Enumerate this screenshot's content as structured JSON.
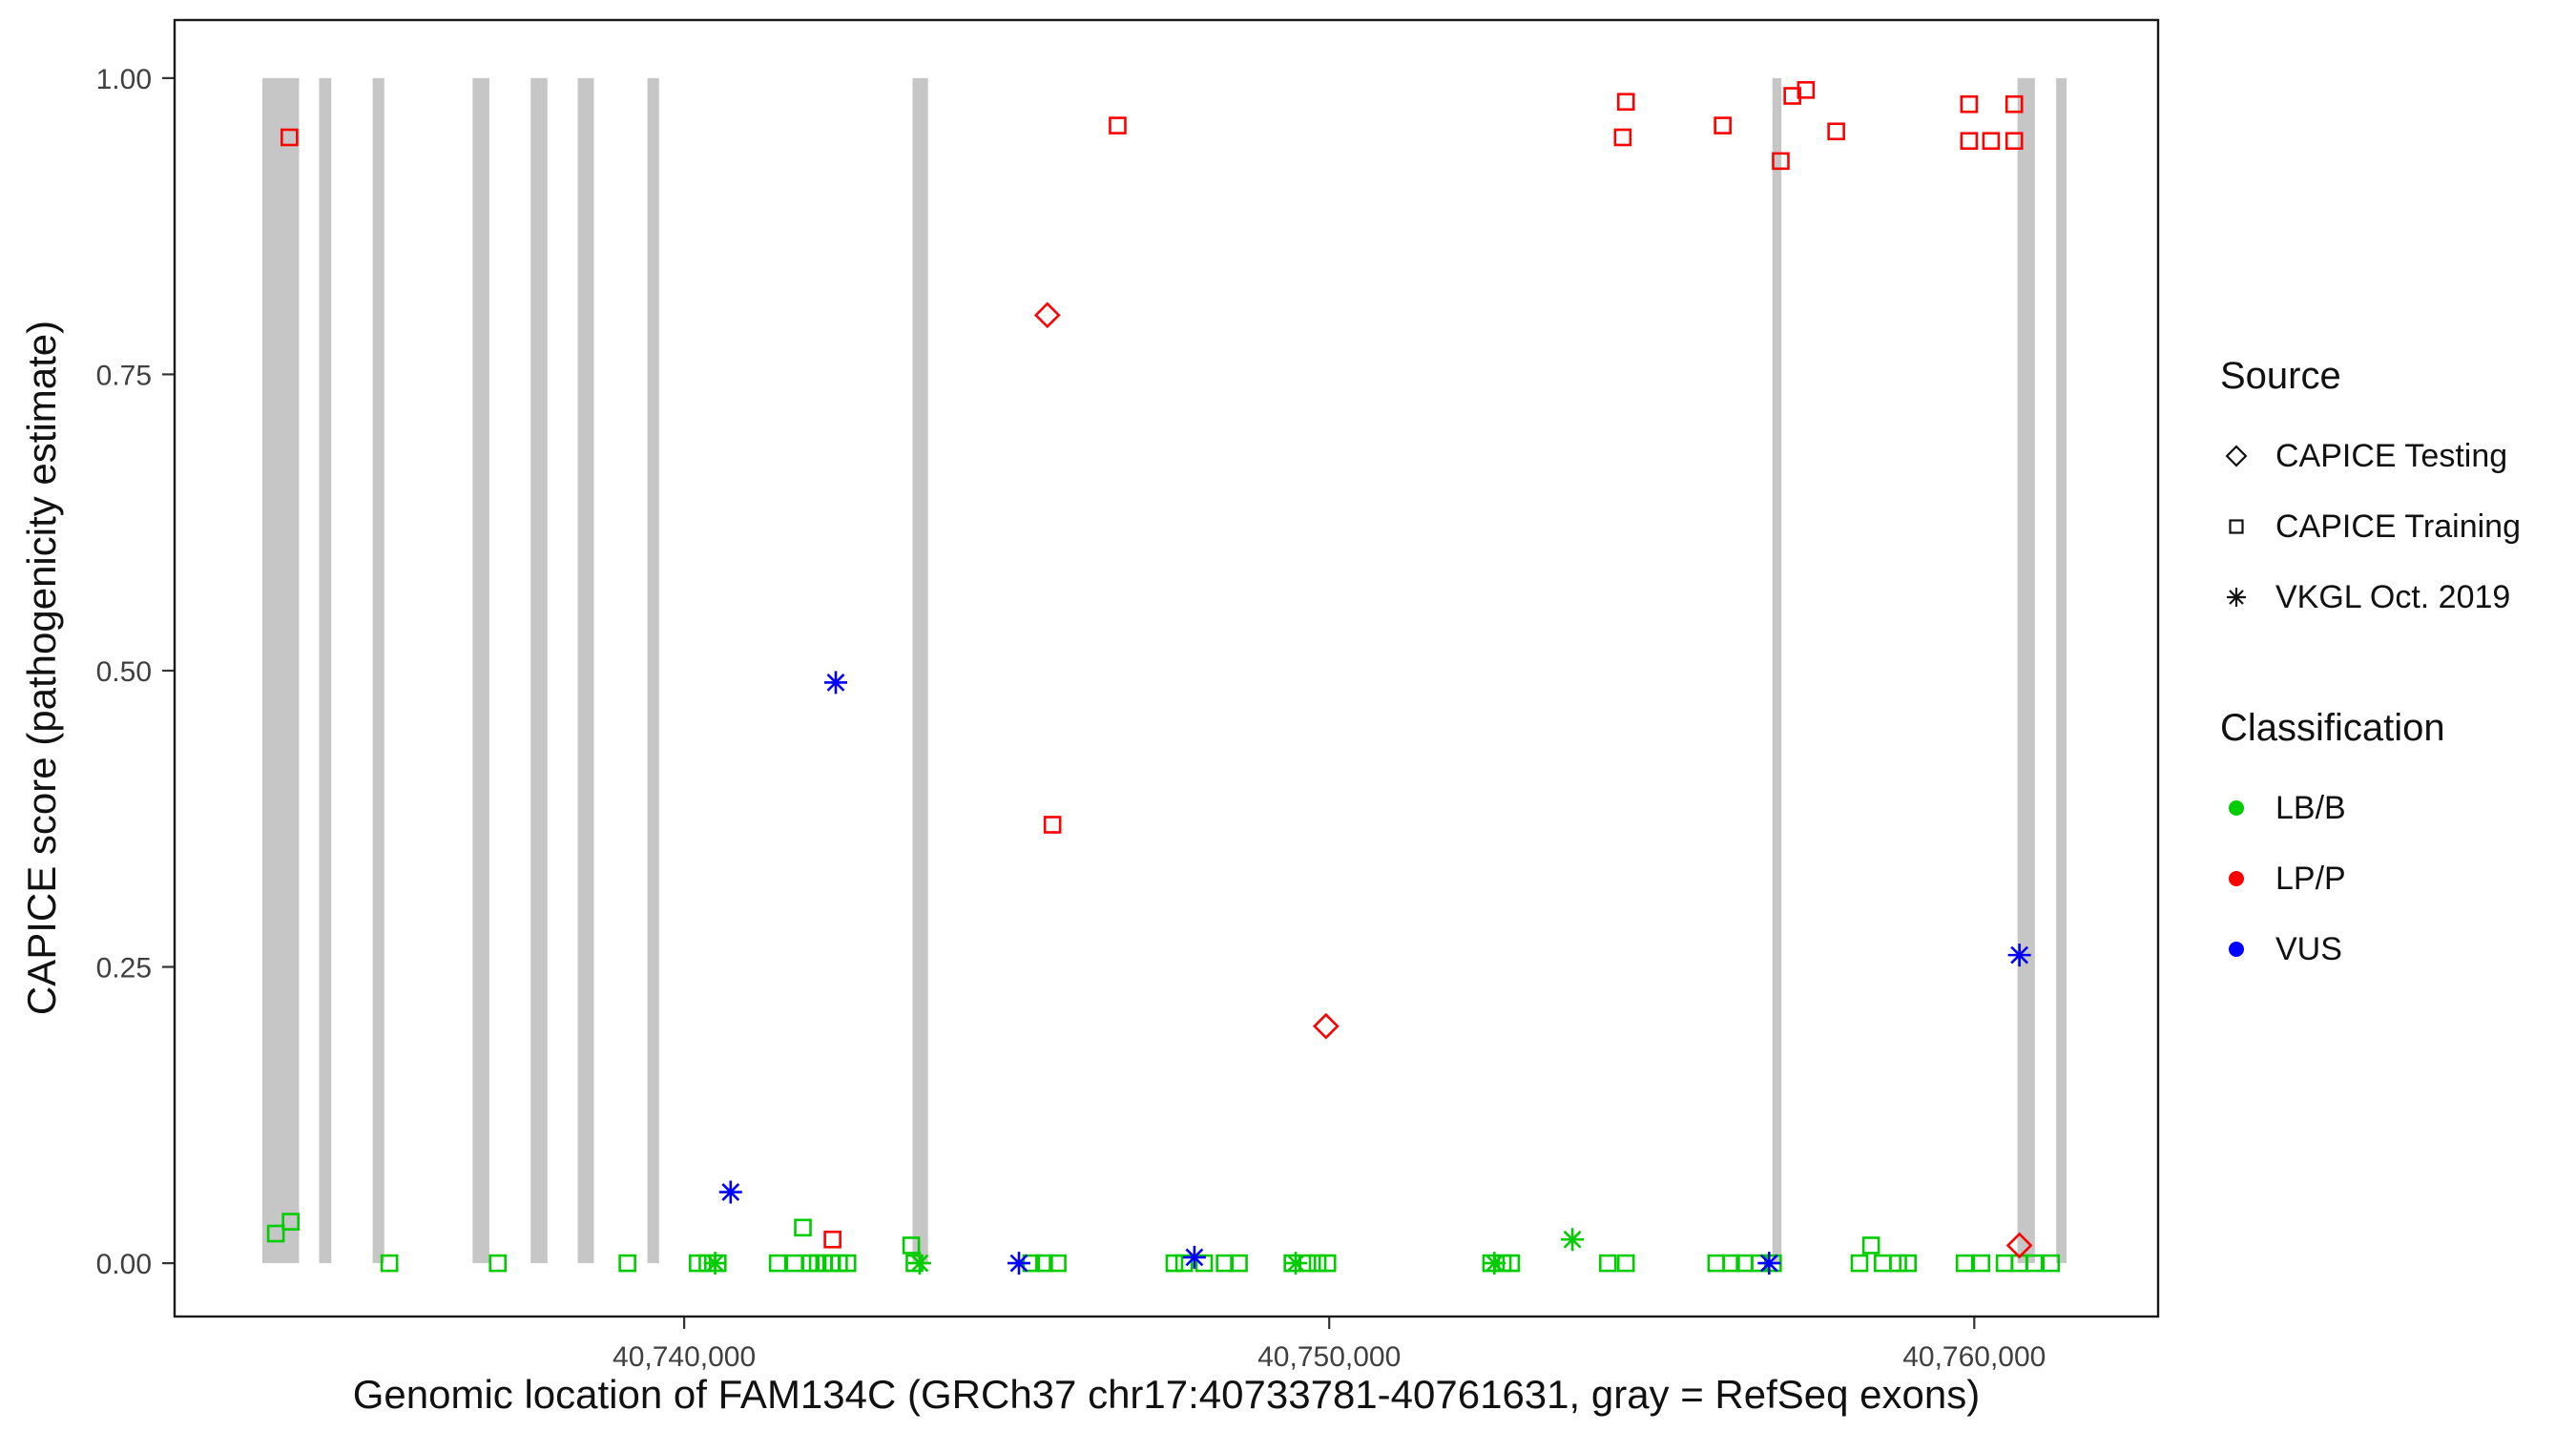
{
  "chart_data": {
    "type": "scatter",
    "title": "",
    "xlabel": "Genomic location of FAM134C (GRCh37 chr17:40733781-40761631, gray = RefSeq exons)",
    "ylabel": "CAPICE score (pathogenicity estimate)",
    "xlim": [
      40732100,
      40762850
    ],
    "ylim": [
      -0.045,
      1.049
    ],
    "grid": false,
    "legend_position": "right",
    "x_ticks": [
      {
        "value": 40740000,
        "label": "40,740,000"
      },
      {
        "value": 40750000,
        "label": "40,750,000"
      },
      {
        "value": 40760000,
        "label": "40,760,000"
      }
    ],
    "y_ticks": [
      {
        "value": 0.0,
        "label": "0.00"
      },
      {
        "value": 0.25,
        "label": "0.25"
      },
      {
        "value": 0.5,
        "label": "0.50"
      },
      {
        "value": 0.75,
        "label": "0.75"
      },
      {
        "value": 1.0,
        "label": "1.00"
      }
    ],
    "exon_color": "#C6C6C6",
    "exons": [
      [
        40733460,
        40734030
      ],
      [
        40734340,
        40734530
      ],
      [
        40735170,
        40735350
      ],
      [
        40736720,
        40736980
      ],
      [
        40737620,
        40737880
      ],
      [
        40738350,
        40738600
      ],
      [
        40739430,
        40739610
      ],
      [
        40743540,
        40743780
      ],
      [
        40756870,
        40757010
      ],
      [
        40760670,
        40760940
      ],
      [
        40761270,
        40761430
      ]
    ],
    "colors": {
      "LB/B": "#00CD00",
      "LP/P": "#FF0000",
      "VUS": "#0000FF"
    },
    "shapes": {
      "CAPICE Testing": "diamond",
      "CAPICE Training": "square",
      "VKGL Oct. 2019": "asterisk"
    },
    "series": [
      {
        "name": "CAPICE Training / LB/B",
        "source": "CAPICE Training",
        "classification": "LB/B",
        "points": [
          [
            40733670,
            0.025
          ],
          [
            40733900,
            0.035
          ],
          [
            40735430,
            0.0
          ],
          [
            40737110,
            0.0
          ],
          [
            40739120,
            0.0
          ],
          [
            40740210,
            0.0
          ],
          [
            40740360,
            0.0
          ],
          [
            40740520,
            0.0
          ],
          [
            40741450,
            0.0
          ],
          [
            40741710,
            0.0
          ],
          [
            40741840,
            0.03
          ],
          [
            40741960,
            0.0
          ],
          [
            40742070,
            0.0
          ],
          [
            40742170,
            0.0
          ],
          [
            40742280,
            0.0
          ],
          [
            40742400,
            0.0
          ],
          [
            40742530,
            0.0
          ],
          [
            40743520,
            0.015
          ],
          [
            40743570,
            0.0
          ],
          [
            40745380,
            0.0
          ],
          [
            40745580,
            0.0
          ],
          [
            40745790,
            0.0
          ],
          [
            40747600,
            0.0
          ],
          [
            40747750,
            0.0
          ],
          [
            40748060,
            0.0
          ],
          [
            40748380,
            0.0
          ],
          [
            40748600,
            0.0
          ],
          [
            40749430,
            0.0
          ],
          [
            40749660,
            0.0
          ],
          [
            40749820,
            0.0
          ],
          [
            40749970,
            0.0
          ],
          [
            40752510,
            0.0
          ],
          [
            40752690,
            0.0
          ],
          [
            40752820,
            0.0
          ],
          [
            40754320,
            0.0
          ],
          [
            40754600,
            0.0
          ],
          [
            40756000,
            0.0
          ],
          [
            40756230,
            0.0
          ],
          [
            40756440,
            0.0
          ],
          [
            40756670,
            0.0
          ],
          [
            40756880,
            0.0
          ],
          [
            40758220,
            0.0
          ],
          [
            40758400,
            0.015
          ],
          [
            40758580,
            0.0
          ],
          [
            40758820,
            0.0
          ],
          [
            40758970,
            0.0
          ],
          [
            40759850,
            0.0
          ],
          [
            40760110,
            0.0
          ],
          [
            40760470,
            0.0
          ],
          [
            40760700,
            0.0
          ],
          [
            40760930,
            0.0
          ],
          [
            40761190,
            0.0
          ]
        ]
      },
      {
        "name": "VKGL Oct. 2019 / LB/B",
        "source": "VKGL Oct. 2019",
        "classification": "LB/B",
        "points": [
          [
            40743650,
            0.0
          ],
          [
            40753770,
            0.02
          ],
          [
            40740480,
            0.0
          ],
          [
            40749480,
            0.0
          ],
          [
            40752560,
            0.0
          ]
        ]
      },
      {
        "name": "CAPICE Training / LP/P",
        "source": "CAPICE Training",
        "classification": "LP/P",
        "points": [
          [
            40733880,
            0.95
          ],
          [
            40745710,
            0.37
          ],
          [
            40746720,
            0.96
          ],
          [
            40742300,
            0.02
          ],
          [
            40754600,
            0.98
          ],
          [
            40754550,
            0.95
          ],
          [
            40756100,
            0.96
          ],
          [
            40757000,
            0.93
          ],
          [
            40757180,
            0.985
          ],
          [
            40757390,
            0.99
          ],
          [
            40757860,
            0.955
          ],
          [
            40759920,
            0.978
          ],
          [
            40759920,
            0.947
          ],
          [
            40760260,
            0.947
          ],
          [
            40760620,
            0.978
          ],
          [
            40760620,
            0.947
          ]
        ]
      },
      {
        "name": "CAPICE Testing / LP/P",
        "source": "CAPICE Testing",
        "classification": "LP/P",
        "points": [
          [
            40745630,
            0.8
          ],
          [
            40749950,
            0.2
          ],
          [
            40760700,
            0.015
          ]
        ]
      },
      {
        "name": "VKGL Oct. 2019 / VUS",
        "source": "VKGL Oct. 2019",
        "classification": "VUS",
        "points": [
          [
            40742350,
            0.49
          ],
          [
            40760700,
            0.26
          ],
          [
            40740720,
            0.06
          ],
          [
            40745190,
            0.0
          ],
          [
            40747910,
            0.005
          ],
          [
            40756820,
            0.0
          ]
        ]
      }
    ]
  },
  "legend": {
    "source_title": "Source",
    "source_items": [
      {
        "label": "CAPICE Testing",
        "shape": "diamond"
      },
      {
        "label": "CAPICE Training",
        "shape": "square"
      },
      {
        "label": "VKGL Oct. 2019",
        "shape": "asterisk"
      }
    ],
    "classification_title": "Classification",
    "classification_items": [
      {
        "label": "LB/B",
        "color": "#00CD00"
      },
      {
        "label": "LP/P",
        "color": "#FF0000"
      },
      {
        "label": "VUS",
        "color": "#0000FF"
      }
    ]
  }
}
